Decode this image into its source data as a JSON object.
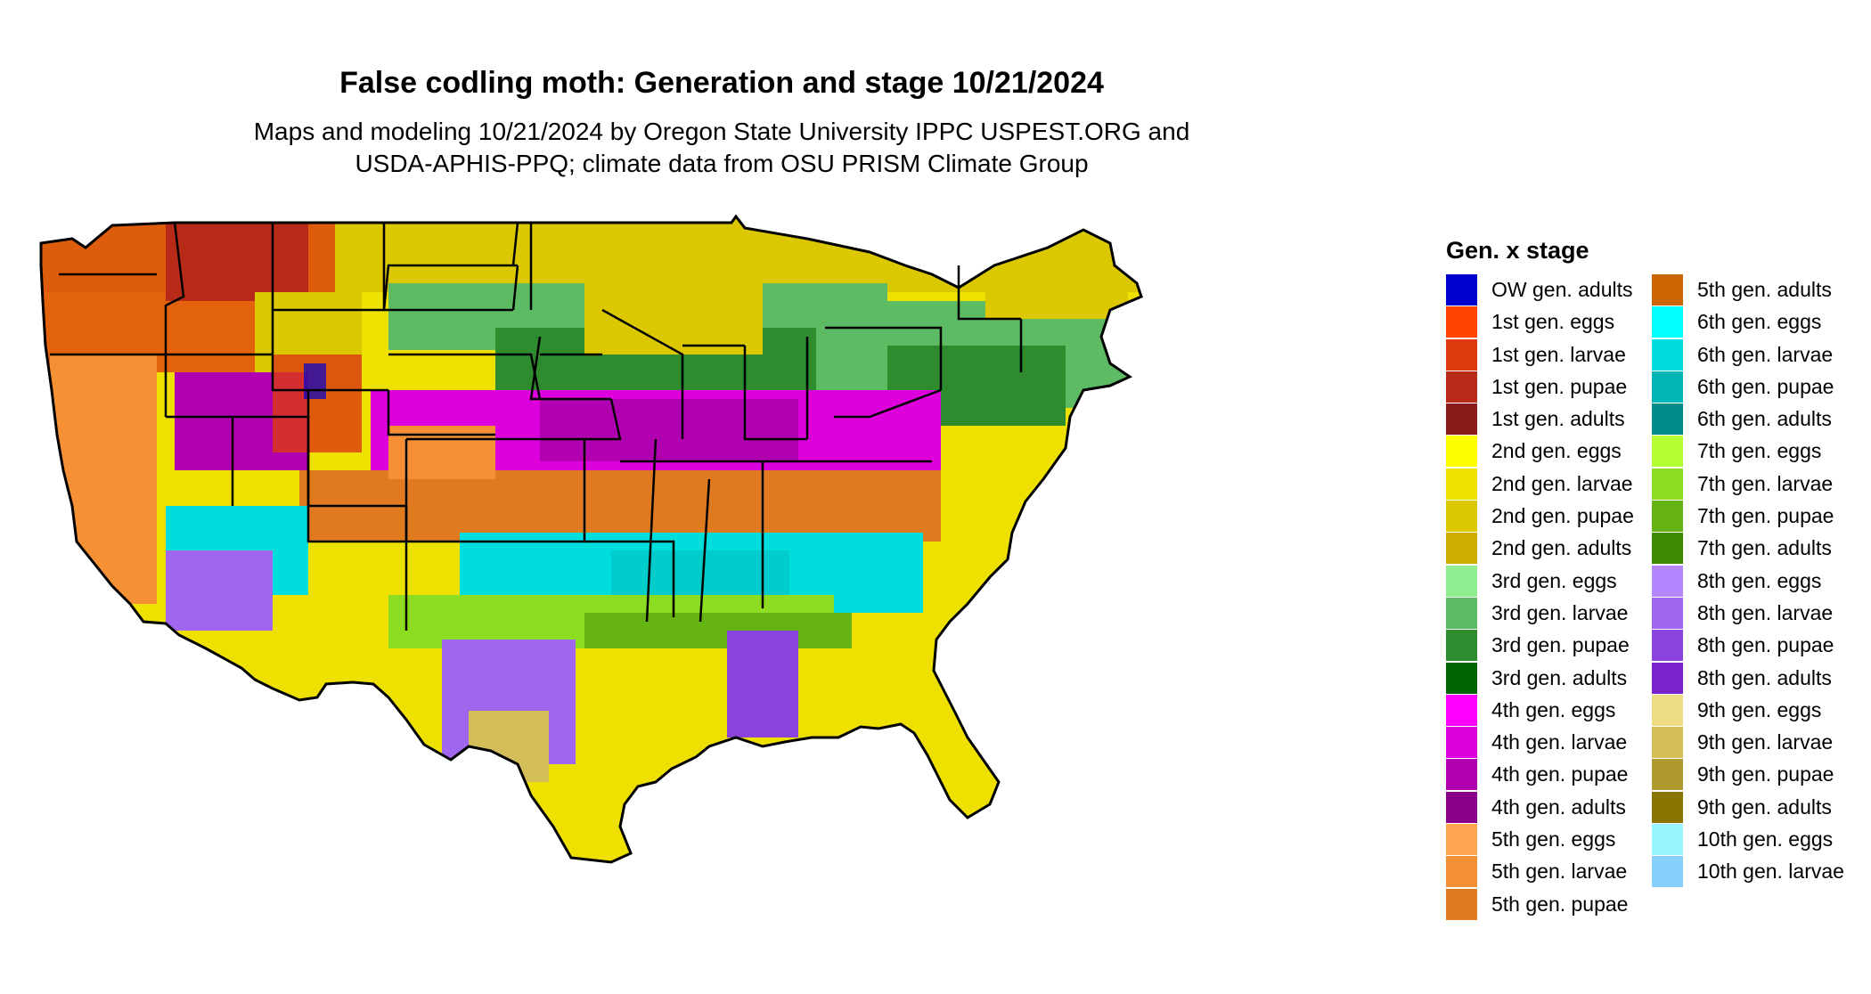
{
  "title": "False codling moth: Generation and stage 10/21/2024",
  "subtitle_line1": "Maps and modeling 10/21/2024 by Oregon State University IPPC USPEST.ORG and",
  "subtitle_line2": "USDA-APHIS-PPQ; climate data from OSU PRISM Climate Group",
  "legend": {
    "title": "Gen. x stage",
    "column1": [
      {
        "label": "OW gen. adults",
        "color": "#0000CC"
      },
      {
        "label": "1st gen. eggs",
        "color": "#FF4500"
      },
      {
        "label": "1st gen. larvae",
        "color": "#DD3A10"
      },
      {
        "label": "1st gen. pupae",
        "color": "#B82A18"
      },
      {
        "label": "1st gen. adults",
        "color": "#8B1A1A"
      },
      {
        "label": "2nd gen. eggs",
        "color": "#FFFF00"
      },
      {
        "label": "2nd gen. larvae",
        "color": "#EEE000"
      },
      {
        "label": "2nd gen. pupae",
        "color": "#DCC800"
      },
      {
        "label": "2nd gen. adults",
        "color": "#CDAD00"
      },
      {
        "label": "3rd gen. eggs",
        "color": "#90EE90"
      },
      {
        "label": "3rd gen. larvae",
        "color": "#5DBB63"
      },
      {
        "label": "3rd gen. pupae",
        "color": "#2E8B2E"
      },
      {
        "label": "3rd gen. adults",
        "color": "#006400"
      },
      {
        "label": "4th gen. eggs",
        "color": "#FF00FF"
      },
      {
        "label": "4th gen. larvae",
        "color": "#DD00DD"
      },
      {
        "label": "4th gen. pupae",
        "color": "#B000B0"
      },
      {
        "label": "4th gen. adults",
        "color": "#8B008B"
      },
      {
        "label": "5th gen. eggs",
        "color": "#FFA54F"
      },
      {
        "label": "5th gen. larvae",
        "color": "#F59035"
      },
      {
        "label": "5th gen. pupae",
        "color": "#E07A1F"
      }
    ],
    "column2": [
      {
        "label": "5th gen. adults",
        "color": "#CD6600"
      },
      {
        "label": "6th gen. eggs",
        "color": "#00FFFF"
      },
      {
        "label": "6th gen. larvae",
        "color": "#00DDDD"
      },
      {
        "label": "6th gen. pupae",
        "color": "#00B5B5"
      },
      {
        "label": "6th gen. adults",
        "color": "#008B8B"
      },
      {
        "label": "7th gen. eggs",
        "color": "#B3FF33"
      },
      {
        "label": "7th gen. larvae",
        "color": "#8CDD22"
      },
      {
        "label": "7th gen. pupae",
        "color": "#66B314"
      },
      {
        "label": "7th gen. adults",
        "color": "#3D8B00"
      },
      {
        "label": "8th gen. eggs",
        "color": "#B388FF"
      },
      {
        "label": "8th gen. larvae",
        "color": "#A066EE"
      },
      {
        "label": "8th gen. pupae",
        "color": "#8A44DD"
      },
      {
        "label": "8th gen. adults",
        "color": "#7A22CC"
      },
      {
        "label": "9th gen. eggs",
        "color": "#EEDC82"
      },
      {
        "label": "9th gen. larvae",
        "color": "#D4BE5A"
      },
      {
        "label": "9th gen. pupae",
        "color": "#B09A30"
      },
      {
        "label": "9th gen. adults",
        "color": "#8B7500"
      },
      {
        "label": "10th gen. eggs",
        "color": "#99F5FF"
      },
      {
        "label": "10th gen. larvae",
        "color": "#87CEFA"
      }
    ]
  }
}
